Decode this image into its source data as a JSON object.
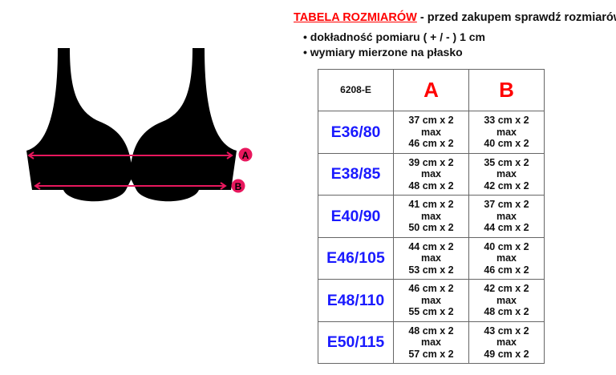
{
  "header": {
    "title": "TABELA ROZMIARÓW",
    "subtitle": " - przed zakupem sprawdź rozmiarówkę!"
  },
  "notes": [
    "dokładność pomiaru ( + / - ) 1 cm",
    "wymiary mierzone na płasko"
  ],
  "diagram": {
    "label_a": "A",
    "label_b": "B",
    "accent": "#e8175d"
  },
  "table": {
    "model": "6208-E",
    "columns": [
      "A",
      "B"
    ],
    "rows": [
      {
        "size": "E36/80",
        "a": [
          "37 cm x 2",
          "max",
          "46 cm x 2"
        ],
        "b": [
          "33 cm x 2",
          "max",
          "40 cm x 2"
        ]
      },
      {
        "size": "E38/85",
        "a": [
          "39 cm x 2",
          "max",
          "48 cm x 2"
        ],
        "b": [
          "35 cm x 2",
          "max",
          "42 cm x 2"
        ]
      },
      {
        "size": "E40/90",
        "a": [
          "41 cm x 2",
          "max",
          "50 cm x 2"
        ],
        "b": [
          "37 cm x 2",
          "max",
          "44 cm x 2"
        ]
      },
      {
        "size": "E46/105",
        "a": [
          "44 cm x 2",
          "max",
          "53 cm x 2"
        ],
        "b": [
          "40 cm x 2",
          "max",
          "46 cm x 2"
        ]
      },
      {
        "size": "E48/110",
        "a": [
          "46 cm x 2",
          "max",
          "55 cm x 2"
        ],
        "b": [
          "42 cm x 2",
          "max",
          "48 cm x 2"
        ]
      },
      {
        "size": "E50/115",
        "a": [
          "48 cm x 2",
          "max",
          "57 cm x 2"
        ],
        "b": [
          "43 cm x 2",
          "max",
          "49 cm x 2"
        ]
      }
    ]
  }
}
